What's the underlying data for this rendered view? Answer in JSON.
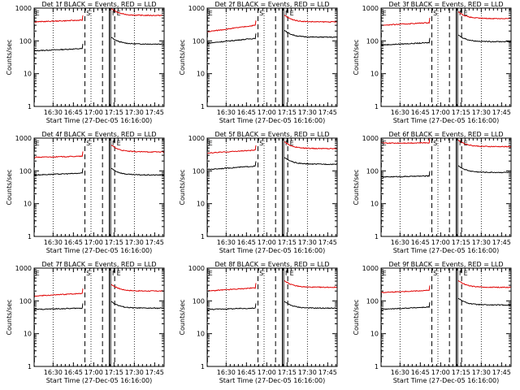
{
  "chart_data": [
    {
      "type": "line",
      "title": "Det 1f BLACK = Events, RED = LLD",
      "xlabel": "Start Time (27-Dec-05 16:16:00)",
      "ylabel": "Counts/sec",
      "yscale": "log",
      "ylim": [
        1,
        1000
      ],
      "xtick_labels": [
        "16:30",
        "16:45",
        "17:00",
        "17:15",
        "17:30",
        "17:45"
      ],
      "ytick_labels": [
        "1",
        "10",
        "100",
        "1000"
      ],
      "markers": [
        "E",
        "S",
        "F",
        "E"
      ],
      "series": [
        {
          "color": "#000000",
          "levels": [
            50,
            58,
            80
          ]
        },
        {
          "color": "#e00000",
          "levels": [
            380,
            430,
            600
          ]
        }
      ]
    },
    {
      "type": "line",
      "title": "Det 2f BLACK = Events, RED = LLD",
      "xlabel": "Start Time (27-Dec-05 16:16:00)",
      "ylabel": "Counts/sec",
      "yscale": "log",
      "ylim": [
        1,
        1000
      ],
      "xtick_labels": [
        "16:30",
        "16:45",
        "17:00",
        "17:15",
        "17:30",
        "17:45"
      ],
      "ytick_labels": [
        "1",
        "10",
        "100",
        "1000"
      ],
      "markers": [
        "E",
        "S",
        "F",
        "E"
      ],
      "series": [
        {
          "color": "#000000",
          "levels": [
            85,
            120,
            130
          ]
        },
        {
          "color": "#e00000",
          "levels": [
            190,
            300,
            380
          ]
        }
      ]
    },
    {
      "type": "line",
      "title": "Det 3f BLACK = Events, RED = LLD",
      "xlabel": "Start Time (27-Dec-05 16:16:00)",
      "ylabel": "Counts/sec",
      "yscale": "log",
      "ylim": [
        1,
        1000
      ],
      "xtick_labels": [
        "16:30",
        "16:45",
        "17:00",
        "17:15",
        "17:30",
        "17:45"
      ],
      "ytick_labels": [
        "1",
        "10",
        "100",
        "1000"
      ],
      "markers": [
        "E",
        "S",
        "F",
        "E"
      ],
      "series": [
        {
          "color": "#000000",
          "levels": [
            75,
            88,
            95
          ]
        },
        {
          "color": "#e00000",
          "levels": [
            300,
            360,
            480
          ]
        }
      ]
    },
    {
      "type": "line",
      "title": "Det 4f BLACK = Events, RED = LLD",
      "xlabel": "Start Time (27-Dec-05 16:16:00)",
      "ylabel": "Counts/sec",
      "yscale": "log",
      "ylim": [
        1,
        1000
      ],
      "xtick_labels": [
        "16:30",
        "16:45",
        "17:00",
        "17:15",
        "17:30",
        "17:45"
      ],
      "ytick_labels": [
        "1",
        "10",
        "100",
        "1000"
      ],
      "markers": [
        "E",
        "S",
        "F",
        "E"
      ],
      "series": [
        {
          "color": "#000000",
          "levels": [
            75,
            85,
            75
          ]
        },
        {
          "color": "#e00000",
          "levels": [
            260,
            280,
            380
          ]
        }
      ]
    },
    {
      "type": "line",
      "title": "Det 5f BLACK = Events, RED = LLD",
      "xlabel": "Start Time (27-Dec-05 16:16:00)",
      "ylabel": "Counts/sec",
      "yscale": "log",
      "ylim": [
        1,
        1000
      ],
      "xtick_labels": [
        "16:30",
        "16:45",
        "17:00",
        "17:15",
        "17:30",
        "17:45"
      ],
      "ytick_labels": [
        "1",
        "10",
        "100",
        "1000"
      ],
      "markers": [
        "E",
        "S",
        "F",
        "E"
      ],
      "series": [
        {
          "color": "#000000",
          "levels": [
            110,
            140,
            160
          ]
        },
        {
          "color": "#e00000",
          "levels": [
            350,
            430,
            480
          ]
        }
      ]
    },
    {
      "type": "line",
      "title": "Det 6f BLACK = Events, RED = LLD",
      "xlabel": "Start Time (27-Dec-05 16:16:00)",
      "ylabel": "Counts/sec",
      "yscale": "log",
      "ylim": [
        1,
        1000
      ],
      "xtick_labels": [
        "16:30",
        "16:45",
        "17:00",
        "17:15",
        "17:30",
        "17:45"
      ],
      "ytick_labels": [
        "1",
        "10",
        "100",
        "1000"
      ],
      "markers": [
        "E",
        "S",
        "F",
        "E"
      ],
      "series": [
        {
          "color": "#000000",
          "levels": [
            65,
            70,
            90
          ]
        },
        {
          "color": "#e00000",
          "levels": [
            700,
            720,
            550
          ]
        }
      ]
    },
    {
      "type": "line",
      "title": "Det 7f BLACK = Events, RED = LLD",
      "xlabel": "Start Time (27-Dec-05 16:16:00)",
      "ylabel": "Counts/sec",
      "yscale": "log",
      "ylim": [
        1,
        1000
      ],
      "xtick_labels": [
        "16:30",
        "16:45",
        "17:00",
        "17:15",
        "17:30",
        "17:45"
      ],
      "ytick_labels": [
        "1",
        "10",
        "100",
        "1000"
      ],
      "markers": [
        "E",
        "S",
        "F",
        "E"
      ],
      "series": [
        {
          "color": "#000000",
          "levels": [
            55,
            60,
            60
          ]
        },
        {
          "color": "#e00000",
          "levels": [
            140,
            170,
            200
          ]
        }
      ]
    },
    {
      "type": "line",
      "title": "Det 8f BLACK = Events, RED = LLD",
      "xlabel": "Start Time (27-Dec-05 16:16:00)",
      "ylabel": "Counts/sec",
      "yscale": "log",
      "ylim": [
        1,
        1000
      ],
      "xtick_labels": [
        "16:30",
        "16:45",
        "17:00",
        "17:15",
        "17:30",
        "17:45"
      ],
      "ytick_labels": [
        "1",
        "10",
        "100",
        "1000"
      ],
      "markers": [
        "E",
        "S",
        "F",
        "E"
      ],
      "series": [
        {
          "color": "#000000",
          "levels": [
            55,
            60,
            60
          ]
        },
        {
          "color": "#e00000",
          "levels": [
            200,
            250,
            260
          ]
        }
      ]
    },
    {
      "type": "line",
      "title": "Det 9f BLACK = Events, RED = LLD",
      "xlabel": "Start Time (27-Dec-05 16:16:00)",
      "ylabel": "Counts/sec",
      "yscale": "log",
      "ylim": [
        1,
        1000
      ],
      "xtick_labels": [
        "16:30",
        "16:45",
        "17:00",
        "17:15",
        "17:30",
        "17:45"
      ],
      "ytick_labels": [
        "1",
        "10",
        "100",
        "1000"
      ],
      "markers": [
        "E",
        "S",
        "F",
        "E"
      ],
      "series": [
        {
          "color": "#000000",
          "levels": [
            55,
            65,
            75
          ]
        },
        {
          "color": "#e00000",
          "levels": [
            180,
            210,
            260
          ]
        }
      ]
    }
  ]
}
